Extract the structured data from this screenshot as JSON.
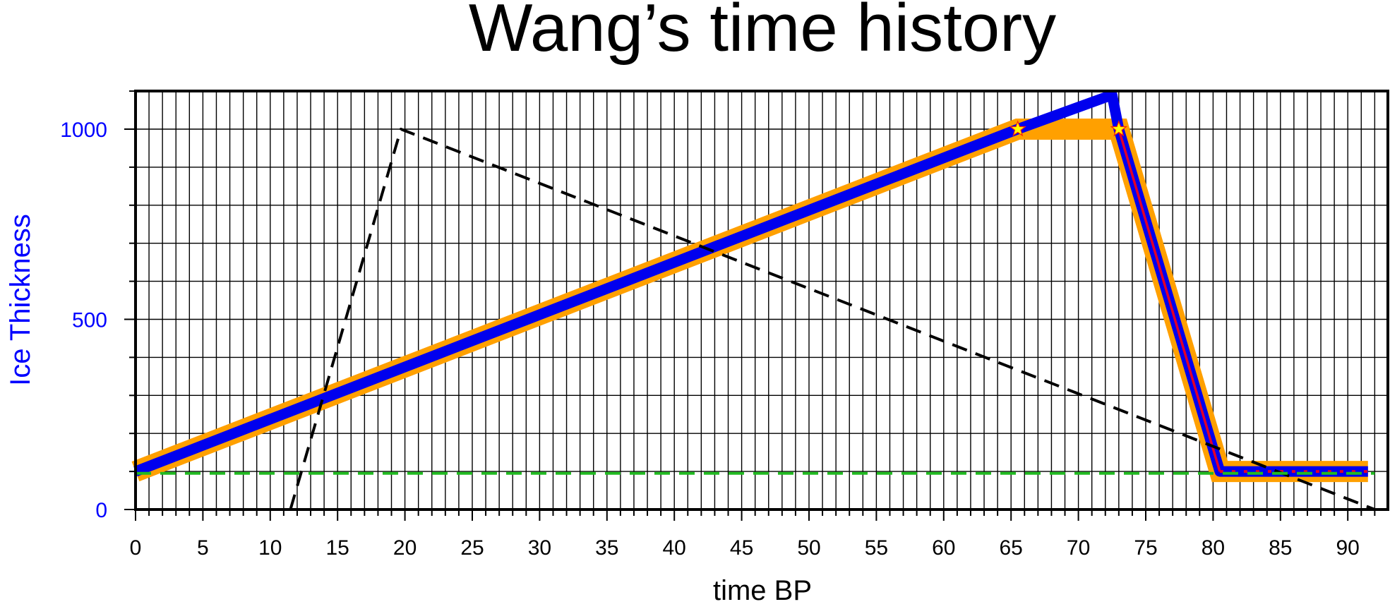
{
  "chart_data": {
    "type": "line",
    "title": "Wang’s time history",
    "xlabel": "time BP",
    "ylabel": "Ice Thickness",
    "xlim": [
      0,
      93
    ],
    "ylim": [
      0,
      1100
    ],
    "x_ticks": [
      0,
      5,
      10,
      15,
      20,
      25,
      30,
      35,
      40,
      45,
      50,
      55,
      60,
      65,
      70,
      75,
      80,
      85,
      90
    ],
    "x_minor_step": 1,
    "y_ticks": [
      0,
      500,
      1000
    ],
    "y_minor_step": 100,
    "grid": true,
    "legend": "none",
    "colors": {
      "axis": "#000000",
      "ylabel": "#0000ff",
      "ytick_labels": "#0000ff",
      "grid": "#000000"
    },
    "series": [
      {
        "style": "band",
        "color": "#ffa000",
        "x": [
          0,
          65.5,
          73,
          80.5,
          91.5
        ],
        "y": [
          100,
          1000,
          1000,
          100,
          100
        ]
      },
      {
        "style": "thick",
        "color": "#0000ee",
        "x": [
          0,
          65.5,
          72.5,
          73,
          80.5,
          91.5
        ],
        "y": [
          100,
          1000,
          1090,
          1000,
          100,
          100
        ]
      },
      {
        "style": "thin",
        "color": "#e0002a",
        "x": [
          73,
          80.5
        ],
        "y": [
          1000,
          100
        ]
      },
      {
        "style": "dotted",
        "color": "#e0002a",
        "x": [
          80.5,
          91.5
        ],
        "y": [
          100,
          100
        ]
      },
      {
        "style": "dashed",
        "color": "#000000",
        "x": [
          11.5,
          19.7,
          92
        ],
        "y": [
          0,
          1000,
          0
        ]
      },
      {
        "style": "dashed",
        "color": "#22bb22",
        "x": [
          0,
          92
        ],
        "y": [
          95,
          95
        ]
      }
    ],
    "markers": [
      {
        "shape": "star",
        "color": "#ffff00",
        "x": 65.5,
        "y": 1000
      },
      {
        "shape": "star",
        "color": "#ffff00",
        "x": 73,
        "y": 1000
      }
    ]
  }
}
